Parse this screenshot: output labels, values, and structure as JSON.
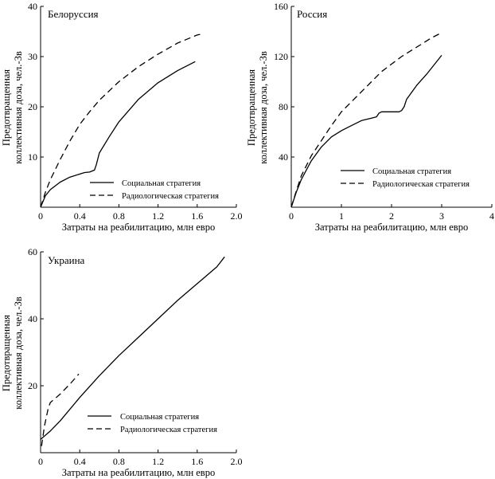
{
  "chart_data": [
    {
      "type": "line",
      "title": "Белоруссия",
      "xlabel": "Затраты на реабилитацию, млн евро",
      "ylabel_line1": "Предотвращенная",
      "ylabel_line2": "коллективная доза, чел.-Зв",
      "xlim": [
        0,
        2.0
      ],
      "ylim": [
        0,
        40
      ],
      "xticks": [
        0,
        0.4,
        0.8,
        1.2,
        1.6,
        2.0
      ],
      "xtick_labels": [
        "0",
        "0.4",
        "0.8",
        "1.2",
        "1.6",
        "2.0"
      ],
      "yticks": [
        10,
        20,
        30,
        40
      ],
      "ytick_labels": [
        "10",
        "20",
        "30",
        "40"
      ],
      "legend_position": "lower-right",
      "series": [
        {
          "name": "Социальная стратегия",
          "style": "solid",
          "x": [
            0,
            0.05,
            0.1,
            0.2,
            0.3,
            0.4,
            0.45,
            0.5,
            0.55,
            0.57,
            0.6,
            0.7,
            0.8,
            1.0,
            1.2,
            1.4,
            1.58
          ],
          "y": [
            0,
            2.3,
            3.5,
            5.0,
            6.0,
            6.6,
            6.9,
            7.0,
            7.4,
            8.5,
            10.8,
            14.0,
            17.0,
            21.5,
            24.8,
            27.2,
            29.0
          ]
        },
        {
          "name": "Радиологическая стратегия",
          "style": "dashed",
          "x": [
            0,
            0.05,
            0.1,
            0.2,
            0.3,
            0.4,
            0.5,
            0.6,
            0.8,
            1.0,
            1.2,
            1.4,
            1.6,
            1.65
          ],
          "y": [
            0,
            3.0,
            5.5,
            9.5,
            13.2,
            16.5,
            19.0,
            21.3,
            25.0,
            28.0,
            30.5,
            32.7,
            34.3,
            34.5
          ]
        }
      ]
    },
    {
      "type": "line",
      "title": "Россия",
      "xlabel": "Затраты на реабилитацию, млн евро",
      "ylabel_line1": "Предотвращенная",
      "ylabel_line2": "коллективная доза, чел.-Зв",
      "xlim": [
        0,
        4
      ],
      "ylim": [
        0,
        160
      ],
      "xticks": [
        0,
        1,
        2,
        3,
        4
      ],
      "xtick_labels": [
        "0",
        "1",
        "2",
        "3",
        "4"
      ],
      "yticks": [
        40,
        80,
        120,
        160
      ],
      "ytick_labels": [
        "40",
        "80",
        "120",
        "160"
      ],
      "legend_position": "lower-right",
      "series": [
        {
          "name": "Социальная стратегия",
          "style": "solid",
          "x": [
            0,
            0.1,
            0.2,
            0.4,
            0.6,
            0.8,
            1.0,
            1.2,
            1.4,
            1.6,
            1.7,
            1.75,
            1.8,
            2.0,
            2.1,
            2.15,
            2.2,
            2.25,
            2.3,
            2.5,
            2.7,
            3.0
          ],
          "y": [
            0,
            12,
            22,
            37,
            48,
            56,
            61,
            65,
            69,
            71,
            72,
            75,
            76,
            76,
            76,
            76,
            77,
            80,
            86,
            97,
            106,
            121
          ]
        },
        {
          "name": "Радиологическая стратегия",
          "style": "dashed",
          "x": [
            0,
            0.1,
            0.2,
            0.4,
            0.6,
            0.8,
            1.0,
            1.2,
            1.4,
            1.6,
            1.8,
            2.0,
            2.2,
            2.4,
            2.6,
            2.8,
            2.95
          ],
          "y": [
            0,
            13,
            25,
            41,
            53,
            65,
            76,
            84,
            92,
            100,
            108,
            114,
            120,
            125,
            130,
            135,
            138
          ]
        }
      ]
    },
    {
      "type": "line",
      "title": "Украина",
      "xlabel": "Затраты на реабилитацию, млн евро",
      "ylabel_line1": "Предотвращенная",
      "ylabel_line2": "коллективная доза, чел.-Зв",
      "xlim": [
        0,
        2.0
      ],
      "ylim": [
        0,
        60
      ],
      "xticks": [
        0,
        0.4,
        0.8,
        1.2,
        1.6,
        2.0
      ],
      "xtick_labels": [
        "0",
        "0.4",
        "0.8",
        "1.2",
        "1.6",
        "2.0"
      ],
      "yticks": [
        20,
        40,
        60
      ],
      "ytick_labels": [
        "20",
        "40",
        "60"
      ],
      "legend_position": "lower-right",
      "series": [
        {
          "name": "Социальная стратегия",
          "style": "solid",
          "x": [
            0,
            0.1,
            0.2,
            0.4,
            0.6,
            0.8,
            1.0,
            1.2,
            1.4,
            1.6,
            1.8,
            1.88
          ],
          "y": [
            4,
            6.5,
            9.5,
            16.5,
            23,
            29,
            34.5,
            40,
            45.5,
            50.5,
            55.5,
            58.5
          ]
        },
        {
          "name": "Радиологическая стратегия",
          "style": "dashed",
          "x": [
            0.01,
            0.04,
            0.08,
            0.1,
            0.2,
            0.3,
            0.39
          ],
          "y": [
            2,
            8,
            13.5,
            15,
            17.5,
            20.5,
            23.5
          ]
        }
      ]
    }
  ]
}
